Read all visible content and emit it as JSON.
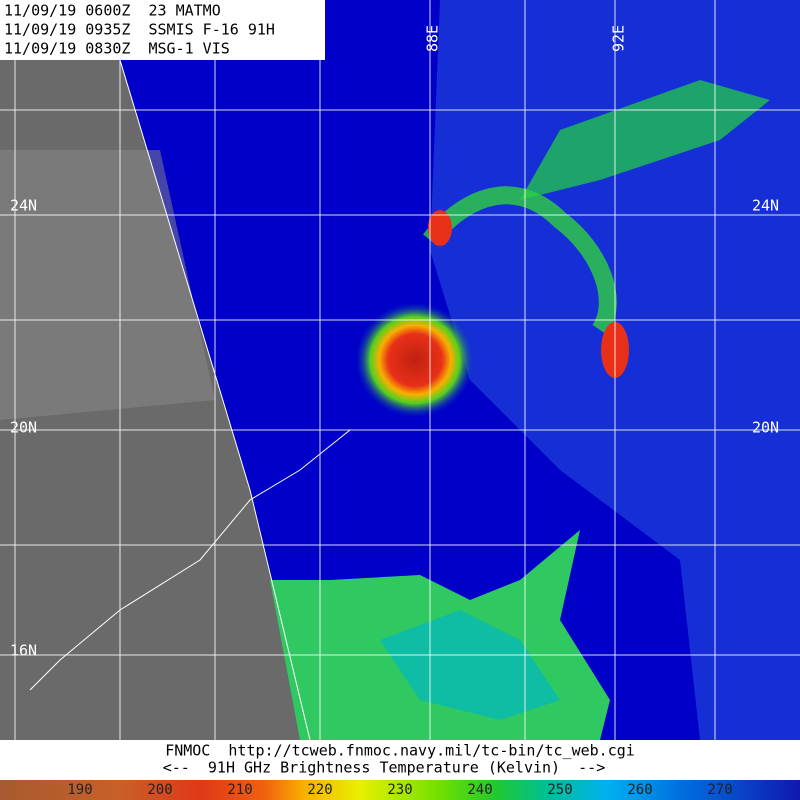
{
  "header": {
    "lines": [
      "11/09/19 0600Z  23 MATMO",
      "11/09/19 0935Z  SSMIS F-16 91H",
      "11/09/19 0830Z  MSG-1 VIS"
    ]
  },
  "map": {
    "left_lat_labels": [
      "24N",
      "20N",
      "16N"
    ],
    "right_lat_labels": [
      "24N",
      "20N"
    ],
    "lon_labels": [
      "88E",
      "92E"
    ]
  },
  "footer": {
    "source": "FNMOC  http://tcweb.fnmoc.navy.mil/tc-bin/tc_web.cgi",
    "caption": "<--  91H GHz Brightness Temperature (Kelvin)  -->"
  },
  "colorbar": {
    "ticks": [
      190,
      200,
      210,
      220,
      230,
      240,
      250,
      260,
      270
    ]
  }
}
